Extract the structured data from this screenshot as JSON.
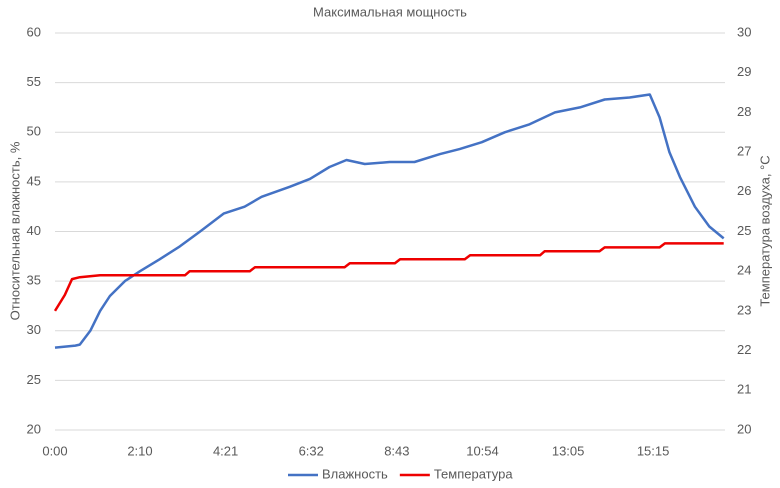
{
  "chart_data": {
    "type": "line",
    "title": "Максимальная мощность",
    "ylabel": "Относительная влажность, %",
    "y2label": "Температура воздуха, °С",
    "xlim": [
      0,
      1025
    ],
    "xticks": [
      {
        "value": 0,
        "label": "0:00"
      },
      {
        "value": 130,
        "label": "2:10"
      },
      {
        "value": 261,
        "label": "4:21"
      },
      {
        "value": 392,
        "label": "6:32"
      },
      {
        "value": 523,
        "label": "8:43"
      },
      {
        "value": 654,
        "label": "10:54"
      },
      {
        "value": 785,
        "label": "13:05"
      },
      {
        "value": 915,
        "label": "15:15"
      }
    ],
    "ylim": [
      20,
      60
    ],
    "yticks": [
      20,
      25,
      30,
      35,
      40,
      45,
      50,
      55,
      60
    ],
    "y2lim": [
      20,
      30
    ],
    "y2ticks": [
      20,
      21,
      22,
      23,
      24,
      25,
      26,
      27,
      28,
      29,
      30
    ],
    "grid": true,
    "legend": "bottom",
    "series": [
      {
        "name": "Влажность",
        "color": "#4472c4",
        "x": [
          0,
          31,
          38,
          54,
          69,
          84,
          107,
          130,
          160,
          191,
          222,
          258,
          290,
          316,
          359,
          390,
          420,
          446,
          474,
          512,
          550,
          589,
          619,
          653,
          688,
          726,
          765,
          803,
          841,
          879,
          910,
          925,
          940,
          956,
          979,
          1001,
          1023
        ],
        "values": [
          28.3,
          28.5,
          28.6,
          30,
          32,
          33.5,
          35,
          36,
          37.2,
          38.5,
          40,
          41.8,
          42.5,
          43.5,
          44.5,
          45.3,
          46.5,
          47.2,
          46.8,
          47,
          47,
          47.8,
          48.3,
          49,
          50,
          50.8,
          52,
          52.5,
          53.3,
          53.5,
          53.8,
          51.5,
          48,
          45.5,
          42.5,
          40.5,
          39.3
        ]
      },
      {
        "name": "Температура",
        "color": "#ee0000",
        "axis": "y2",
        "x": [
          0,
          15,
          26,
          38,
          69,
          199,
          206,
          298,
          306,
          443,
          451,
          520,
          528,
          627,
          635,
          742,
          749,
          833,
          841,
          925,
          933,
          1023
        ],
        "values": [
          23,
          23.4,
          23.8,
          23.85,
          23.9,
          23.9,
          24.0,
          24.0,
          24.1,
          24.1,
          24.2,
          24.2,
          24.3,
          24.3,
          24.4,
          24.4,
          24.5,
          24.5,
          24.6,
          24.6,
          24.7,
          24.7
        ]
      }
    ]
  }
}
